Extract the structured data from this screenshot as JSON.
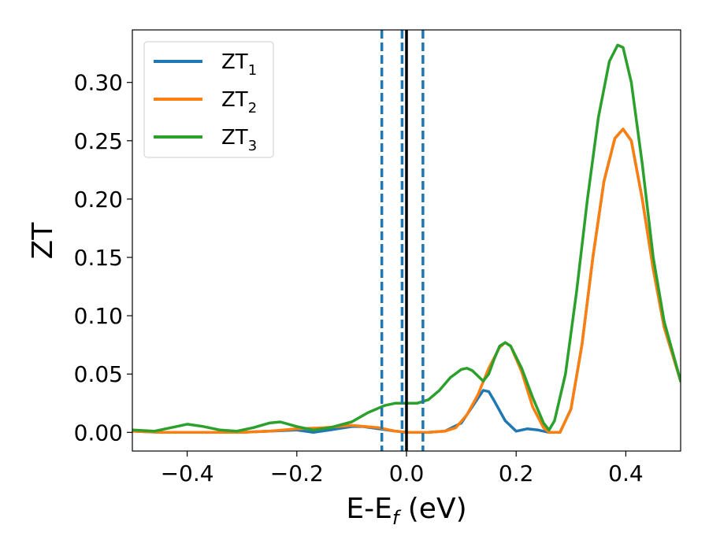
{
  "chart_data": {
    "type": "line",
    "xlabel": {
      "main": "E-E",
      "sub": "f",
      "unit": " (eV)"
    },
    "ylabel": "ZT",
    "xlim": [
      -0.5,
      0.5
    ],
    "ylim": [
      -0.016,
      0.345
    ],
    "xticks": [
      -0.4,
      -0.2,
      0.0,
      0.2,
      0.4
    ],
    "xtick_labels": [
      "−0.4",
      "−0.2",
      "0.0",
      "0.2",
      "0.4"
    ],
    "yticks": [
      0.0,
      0.05,
      0.1,
      0.15,
      0.2,
      0.25,
      0.3
    ],
    "ytick_labels": [
      "0.00",
      "0.05",
      "0.10",
      "0.15",
      "0.20",
      "0.25",
      "0.30"
    ],
    "grid": false,
    "legend_position": "top-left",
    "vlines": [
      {
        "x": -0.045,
        "style": "dashed",
        "color": "#1f77b4"
      },
      {
        "x": -0.008,
        "style": "dashed",
        "color": "#1f77b4"
      },
      {
        "x": 0.03,
        "style": "dashed",
        "color": "#1f77b4"
      },
      {
        "x": 0.0,
        "style": "solid",
        "color": "#000000"
      }
    ],
    "series": [
      {
        "name": "ZT",
        "sub": "1",
        "color": "#1f77b4",
        "points": [
          [
            -0.5,
            0.001
          ],
          [
            -0.45,
            0.0
          ],
          [
            -0.4,
            0.0
          ],
          [
            -0.35,
            0.0
          ],
          [
            -0.3,
            0.0
          ],
          [
            -0.25,
            0.001
          ],
          [
            -0.2,
            0.002
          ],
          [
            -0.17,
            0.0
          ],
          [
            -0.14,
            0.002
          ],
          [
            -0.1,
            0.005
          ],
          [
            -0.08,
            0.005
          ],
          [
            -0.05,
            0.003
          ],
          [
            -0.02,
            0.001
          ],
          [
            0.0,
            0.0
          ],
          [
            0.04,
            0.0
          ],
          [
            0.07,
            0.001
          ],
          [
            0.1,
            0.008
          ],
          [
            0.12,
            0.022
          ],
          [
            0.14,
            0.036
          ],
          [
            0.15,
            0.035
          ],
          [
            0.16,
            0.027
          ],
          [
            0.18,
            0.01
          ],
          [
            0.2,
            0.001
          ],
          [
            0.22,
            0.003
          ],
          [
            0.24,
            0.002
          ],
          [
            0.26,
            0.0
          ],
          [
            0.28,
            0.0
          ],
          [
            0.3,
            0.02
          ],
          [
            0.32,
            0.075
          ],
          [
            0.34,
            0.15
          ],
          [
            0.36,
            0.215
          ],
          [
            0.38,
            0.252
          ],
          [
            0.395,
            0.26
          ],
          [
            0.41,
            0.25
          ],
          [
            0.43,
            0.2
          ],
          [
            0.45,
            0.14
          ],
          [
            0.47,
            0.09
          ],
          [
            0.5,
            0.044
          ]
        ]
      },
      {
        "name": "ZT",
        "sub": "2",
        "color": "#ff7f0e",
        "points": [
          [
            -0.5,
            0.001
          ],
          [
            -0.45,
            0.0
          ],
          [
            -0.4,
            0.0
          ],
          [
            -0.35,
            0.0
          ],
          [
            -0.3,
            0.0
          ],
          [
            -0.25,
            0.001
          ],
          [
            -0.2,
            0.003
          ],
          [
            -0.15,
            0.004
          ],
          [
            -0.1,
            0.006
          ],
          [
            -0.05,
            0.004
          ],
          [
            -0.02,
            0.001
          ],
          [
            0.0,
            0.0
          ],
          [
            0.04,
            0.0
          ],
          [
            0.07,
            0.001
          ],
          [
            0.09,
            0.004
          ],
          [
            0.11,
            0.015
          ],
          [
            0.13,
            0.032
          ],
          [
            0.15,
            0.055
          ],
          [
            0.17,
            0.073
          ],
          [
            0.18,
            0.077
          ],
          [
            0.19,
            0.074
          ],
          [
            0.21,
            0.052
          ],
          [
            0.23,
            0.022
          ],
          [
            0.25,
            0.004
          ],
          [
            0.26,
            0.0
          ],
          [
            0.28,
            0.0
          ],
          [
            0.3,
            0.02
          ],
          [
            0.32,
            0.075
          ],
          [
            0.34,
            0.15
          ],
          [
            0.36,
            0.215
          ],
          [
            0.38,
            0.252
          ],
          [
            0.395,
            0.26
          ],
          [
            0.41,
            0.25
          ],
          [
            0.43,
            0.2
          ],
          [
            0.45,
            0.14
          ],
          [
            0.47,
            0.09
          ],
          [
            0.5,
            0.044
          ]
        ]
      },
      {
        "name": "ZT",
        "sub": "3",
        "color": "#2ca02c",
        "points": [
          [
            -0.5,
            0.002
          ],
          [
            -0.46,
            0.001
          ],
          [
            -0.42,
            0.005
          ],
          [
            -0.4,
            0.007
          ],
          [
            -0.37,
            0.005
          ],
          [
            -0.34,
            0.002
          ],
          [
            -0.31,
            0.001
          ],
          [
            -0.28,
            0.004
          ],
          [
            -0.25,
            0.008
          ],
          [
            -0.23,
            0.009
          ],
          [
            -0.2,
            0.005
          ],
          [
            -0.17,
            0.002
          ],
          [
            -0.14,
            0.004
          ],
          [
            -0.1,
            0.009
          ],
          [
            -0.07,
            0.017
          ],
          [
            -0.04,
            0.023
          ],
          [
            -0.02,
            0.025
          ],
          [
            0.0,
            0.025
          ],
          [
            0.02,
            0.025
          ],
          [
            0.04,
            0.028
          ],
          [
            0.06,
            0.036
          ],
          [
            0.08,
            0.047
          ],
          [
            0.1,
            0.054
          ],
          [
            0.11,
            0.055
          ],
          [
            0.12,
            0.053
          ],
          [
            0.14,
            0.044
          ],
          [
            0.15,
            0.05
          ],
          [
            0.16,
            0.063
          ],
          [
            0.17,
            0.074
          ],
          [
            0.18,
            0.077
          ],
          [
            0.19,
            0.074
          ],
          [
            0.21,
            0.055
          ],
          [
            0.23,
            0.03
          ],
          [
            0.25,
            0.008
          ],
          [
            0.26,
            0.002
          ],
          [
            0.27,
            0.01
          ],
          [
            0.29,
            0.05
          ],
          [
            0.31,
            0.12
          ],
          [
            0.33,
            0.2
          ],
          [
            0.35,
            0.27
          ],
          [
            0.37,
            0.318
          ],
          [
            0.385,
            0.332
          ],
          [
            0.395,
            0.33
          ],
          [
            0.41,
            0.3
          ],
          [
            0.43,
            0.23
          ],
          [
            0.45,
            0.15
          ],
          [
            0.47,
            0.095
          ],
          [
            0.5,
            0.044
          ]
        ]
      }
    ]
  }
}
